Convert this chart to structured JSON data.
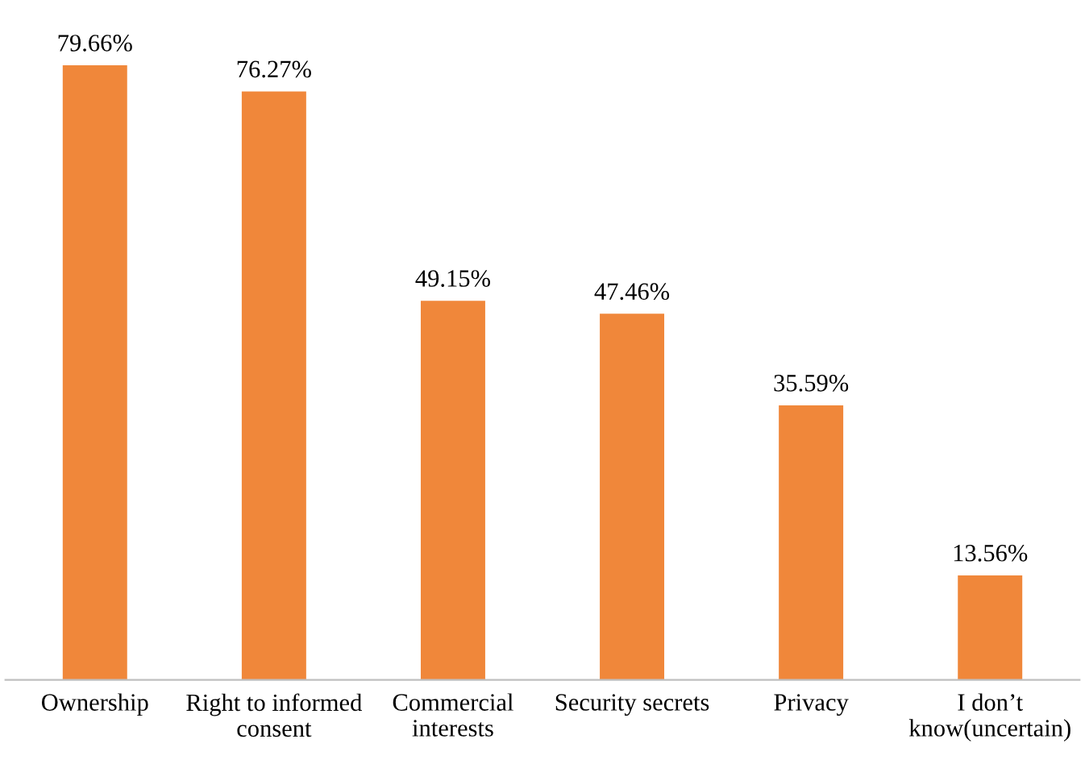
{
  "chart_data": {
    "type": "bar",
    "categories": [
      "Ownership",
      "Right to informed\nconsent",
      "Commercial\ninterests",
      "Security secrets",
      "Privacy",
      "I don’t\nknow(uncertain)"
    ],
    "values": [
      79.66,
      76.27,
      49.15,
      47.46,
      35.59,
      13.56
    ],
    "value_labels": [
      "79.66%",
      "76.27%",
      "49.15%",
      "47.46%",
      "35.59%",
      "13.56%"
    ],
    "color": "#f0873a"
  }
}
